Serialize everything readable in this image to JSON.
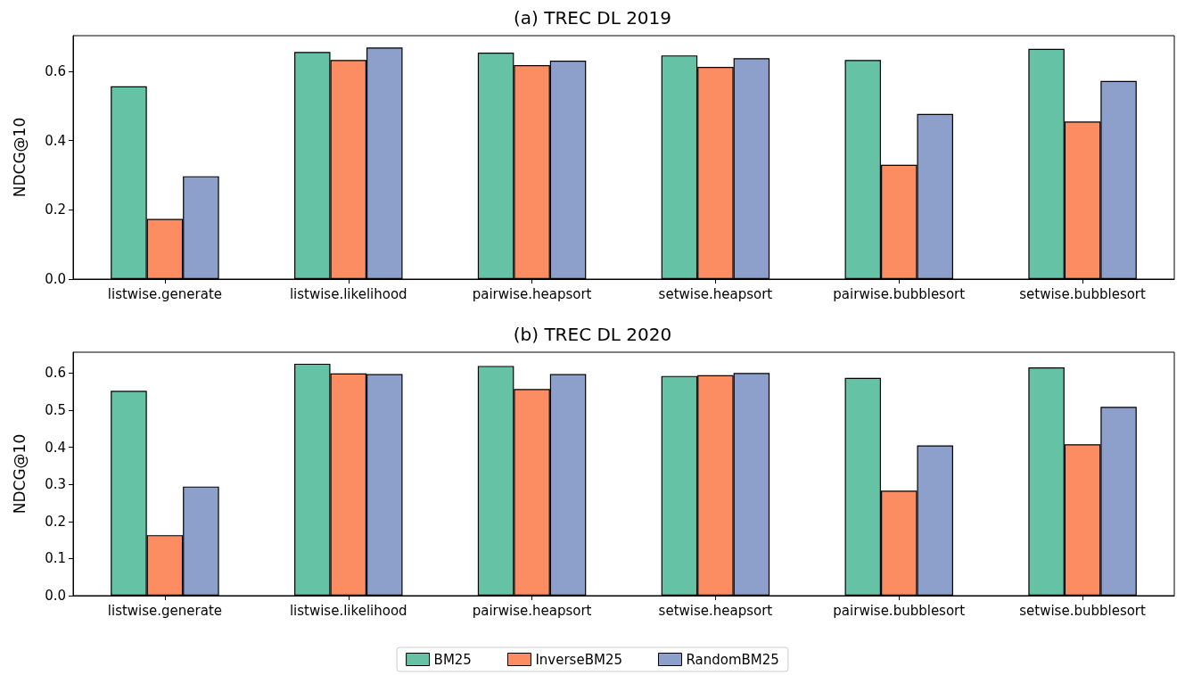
{
  "chart_data": [
    {
      "type": "bar",
      "title": "(a) TREC DL 2019",
      "ylabel": "NDCG@10",
      "categories": [
        "listwise.generate",
        "listwise.likelihood",
        "pairwise.heapsort",
        "setwise.heapsort",
        "pairwise.bubblesort",
        "setwise.bubblesort"
      ],
      "series": [
        {
          "color": "#66c2a5",
          "values": [
            0.557,
            0.656,
            0.654,
            0.646,
            0.633,
            0.665
          ]
        },
        {
          "color": "#fc8d62",
          "values": [
            0.174,
            0.633,
            0.618,
            0.613,
            0.33,
            0.455
          ]
        },
        {
          "color": "#8da0cb",
          "values": [
            0.297,
            0.669,
            0.631,
            0.638,
            0.477,
            0.572
          ]
        }
      ],
      "ylim": [
        0,
        0.703
      ],
      "yticks": [
        {
          "value": 0,
          "label": "0.0"
        },
        {
          "value": 0.2,
          "label": "0.2"
        },
        {
          "value": 0.4,
          "label": "0.4"
        },
        {
          "value": 0.6,
          "label": "0.6"
        }
      ],
      "grid": false,
      "legend": false
    },
    {
      "type": "bar",
      "title": "(b) TREC DL 2020",
      "ylabel": "NDCG@10",
      "categories": [
        "listwise.generate",
        "listwise.likelihood",
        "pairwise.heapsort",
        "setwise.heapsort",
        "pairwise.bubblesort",
        "setwise.bubblesort"
      ],
      "series": [
        {
          "name": "BM25",
          "color": "#66c2a5",
          "values": [
            0.552,
            0.625,
            0.619,
            0.592,
            0.587,
            0.615
          ]
        },
        {
          "name": "InverseBM25",
          "color": "#fc8d62",
          "values": [
            0.163,
            0.599,
            0.557,
            0.594,
            0.283,
            0.408
          ]
        },
        {
          "name": "RandomBM25",
          "color": "#8da0cb",
          "values": [
            0.294,
            0.597,
            0.597,
            0.6,
            0.405,
            0.509
          ]
        }
      ],
      "ylim": [
        0,
        0.656
      ],
      "yticks": [
        {
          "value": 0,
          "label": "0.0"
        },
        {
          "value": 0.1,
          "label": "0.1"
        },
        {
          "value": 0.2,
          "label": "0.2"
        },
        {
          "value": 0.3,
          "label": "0.3"
        },
        {
          "value": 0.4,
          "label": "0.4"
        },
        {
          "value": 0.5,
          "label": "0.5"
        },
        {
          "value": 0.6,
          "label": "0.6"
        }
      ],
      "grid": false,
      "legend": "bottom"
    }
  ]
}
